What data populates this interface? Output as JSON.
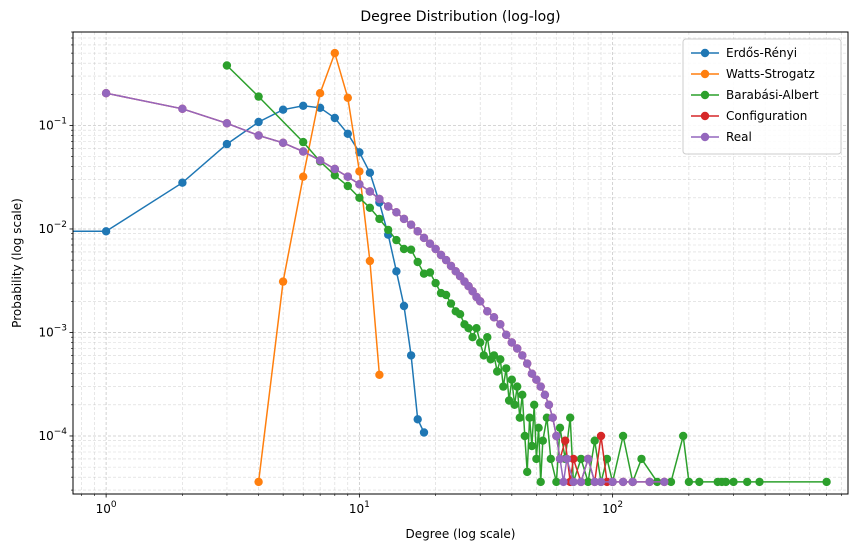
{
  "chart_data": {
    "type": "line",
    "title": "Degree Distribution (log-log)",
    "xlabel": "Degree (log scale)",
    "ylabel": "Probability (log scale)",
    "xscale": "log",
    "yscale": "log",
    "xlim": [
      0.74,
      850
    ],
    "ylim": [
      2.75e-05,
      0.8
    ],
    "grid": true,
    "legend_position": "top-right",
    "x_ticks": [
      {
        "base": "10",
        "exp": "0",
        "value": 1
      },
      {
        "base": "10",
        "exp": "1",
        "value": 10
      },
      {
        "base": "10",
        "exp": "2",
        "value": 100
      }
    ],
    "y_ticks": [
      {
        "base": "10",
        "exp": "−4",
        "value": 0.0001
      },
      {
        "base": "10",
        "exp": "−3",
        "value": 0.001
      },
      {
        "base": "10",
        "exp": "−2",
        "value": 0.01
      },
      {
        "base": "10",
        "exp": "−1",
        "value": 0.1
      }
    ],
    "series": [
      {
        "name": "Erdős-Rényi",
        "color": "#1f77b4",
        "points": [
          [
            0.5,
            0.0095
          ],
          [
            1,
            0.0095
          ],
          [
            2,
            0.028
          ],
          [
            3,
            0.066
          ],
          [
            4,
            0.108
          ],
          [
            5,
            0.142
          ],
          [
            6,
            0.155
          ],
          [
            7,
            0.148
          ],
          [
            8,
            0.118
          ],
          [
            9,
            0.083
          ],
          [
            10,
            0.055
          ],
          [
            11,
            0.035
          ],
          [
            12,
            0.018
          ],
          [
            13,
            0.0088
          ],
          [
            14,
            0.0039
          ],
          [
            15,
            0.0018
          ],
          [
            16,
            0.0006
          ],
          [
            17,
            0.000145
          ],
          [
            18,
            0.000108
          ]
        ]
      },
      {
        "name": "Watts-Strogatz",
        "color": "#ff7f0e",
        "points": [
          [
            4,
            3.6e-05
          ],
          [
            5,
            0.0031
          ],
          [
            6,
            0.032
          ],
          [
            7,
            0.205
          ],
          [
            8,
            0.5
          ],
          [
            9,
            0.185
          ],
          [
            10,
            0.036
          ],
          [
            11,
            0.0049
          ],
          [
            12,
            0.00039
          ]
        ]
      },
      {
        "name": "Barabási-Albert",
        "color": "#2ca02c",
        "points": [
          [
            3,
            0.38
          ],
          [
            4,
            0.19
          ],
          [
            6,
            0.069
          ],
          [
            7,
            0.045
          ],
          [
            8,
            0.033
          ],
          [
            9,
            0.026
          ],
          [
            10,
            0.02
          ],
          [
            11,
            0.016
          ],
          [
            12,
            0.0125
          ],
          [
            13,
            0.0098
          ],
          [
            14,
            0.0078
          ],
          [
            15,
            0.0064
          ],
          [
            16,
            0.0063
          ],
          [
            17,
            0.0048
          ],
          [
            18,
            0.0037
          ],
          [
            19,
            0.0038
          ],
          [
            20,
            0.003
          ],
          [
            21,
            0.0024
          ],
          [
            22,
            0.0023
          ],
          [
            23,
            0.0019
          ],
          [
            24,
            0.0016
          ],
          [
            25,
            0.0015
          ],
          [
            26,
            0.0012
          ],
          [
            27,
            0.0011
          ],
          [
            28,
            0.0009
          ],
          [
            29,
            0.0011
          ],
          [
            30,
            0.0008
          ],
          [
            31,
            0.0006
          ],
          [
            32,
            0.0009
          ],
          [
            33,
            0.00055
          ],
          [
            34,
            0.0006
          ],
          [
            35,
            0.00042
          ],
          [
            36,
            0.00055
          ],
          [
            37,
            0.0003
          ],
          [
            38,
            0.00045
          ],
          [
            39,
            0.00022
          ],
          [
            40,
            0.00035
          ],
          [
            41,
            0.0002
          ],
          [
            42,
            0.0003
          ],
          [
            43,
            0.00015
          ],
          [
            44,
            0.00025
          ],
          [
            45,
            0.0001
          ],
          [
            46,
            4.5e-05
          ],
          [
            47,
            0.00015
          ],
          [
            48,
            8e-05
          ],
          [
            49,
            0.0002
          ],
          [
            50,
            6e-05
          ],
          [
            51,
            0.00012
          ],
          [
            52,
            3.6e-05
          ],
          [
            53,
            9e-05
          ],
          [
            55,
            0.00015
          ],
          [
            57,
            6e-05
          ],
          [
            60,
            3.6e-05
          ],
          [
            62,
            0.00012
          ],
          [
            65,
            6e-05
          ],
          [
            68,
            0.00015
          ],
          [
            70,
            3.6e-05
          ],
          [
            75,
            6e-05
          ],
          [
            80,
            3.6e-05
          ],
          [
            85,
            9e-05
          ],
          [
            90,
            3.6e-05
          ],
          [
            95,
            6e-05
          ],
          [
            100,
            3.6e-05
          ],
          [
            110,
            0.0001
          ],
          [
            120,
            3.6e-05
          ],
          [
            130,
            6e-05
          ],
          [
            150,
            3.6e-05
          ],
          [
            170,
            3.6e-05
          ],
          [
            190,
            0.0001
          ],
          [
            200,
            3.6e-05
          ],
          [
            220,
            3.6e-05
          ],
          [
            260,
            3.6e-05
          ],
          [
            270,
            3.6e-05
          ],
          [
            280,
            3.6e-05
          ],
          [
            300,
            3.6e-05
          ],
          [
            340,
            3.6e-05
          ],
          [
            380,
            3.6e-05
          ],
          [
            700,
            3.6e-05
          ]
        ]
      },
      {
        "name": "Configuration",
        "color": "#d62728",
        "points": [
          [
            1,
            0.205
          ],
          [
            2,
            0.145
          ],
          [
            3,
            0.105
          ],
          [
            4,
            0.08
          ],
          [
            5,
            0.068
          ],
          [
            6,
            0.056
          ],
          [
            7,
            0.046
          ],
          [
            8,
            0.038
          ],
          [
            9,
            0.032
          ],
          [
            10,
            0.027
          ],
          [
            11,
            0.023
          ],
          [
            12,
            0.0195
          ],
          [
            13,
            0.0165
          ],
          [
            14,
            0.0145
          ],
          [
            15,
            0.0125
          ],
          [
            16,
            0.011
          ],
          [
            17,
            0.0095
          ],
          [
            18,
            0.0082
          ],
          [
            19,
            0.0072
          ],
          [
            20,
            0.0064
          ],
          [
            21,
            0.0056
          ],
          [
            22,
            0.005
          ],
          [
            23,
            0.0044
          ],
          [
            24,
            0.0039
          ],
          [
            25,
            0.0035
          ],
          [
            26,
            0.0031
          ],
          [
            27,
            0.0028
          ],
          [
            28,
            0.0025
          ],
          [
            29,
            0.0022
          ],
          [
            30,
            0.002
          ],
          [
            32,
            0.0016
          ],
          [
            34,
            0.0014
          ],
          [
            36,
            0.0012
          ],
          [
            38,
            0.00095
          ],
          [
            40,
            0.0008
          ],
          [
            42,
            0.0007
          ],
          [
            44,
            0.0006
          ],
          [
            46,
            0.0005
          ],
          [
            48,
            0.0004
          ],
          [
            50,
            0.00035
          ],
          [
            52,
            0.0003
          ],
          [
            54,
            0.00025
          ],
          [
            56,
            0.0002
          ],
          [
            58,
            0.00015
          ],
          [
            60,
            0.0001
          ],
          [
            62,
            6e-05
          ],
          [
            65,
            9e-05
          ],
          [
            68,
            3.6e-05
          ],
          [
            70,
            6e-05
          ],
          [
            75,
            3.6e-05
          ],
          [
            80,
            6e-05
          ],
          [
            85,
            3.6e-05
          ],
          [
            90,
            0.0001
          ],
          [
            95,
            3.6e-05
          ],
          [
            100,
            3.6e-05
          ],
          [
            110,
            3.6e-05
          ],
          [
            120,
            3.6e-05
          ],
          [
            140,
            3.6e-05
          ],
          [
            160,
            3.6e-05
          ]
        ]
      },
      {
        "name": "Real",
        "color": "#9467bd",
        "points": [
          [
            1,
            0.205
          ],
          [
            2,
            0.145
          ],
          [
            3,
            0.105
          ],
          [
            4,
            0.08
          ],
          [
            5,
            0.068
          ],
          [
            6,
            0.056
          ],
          [
            7,
            0.046
          ],
          [
            8,
            0.038
          ],
          [
            9,
            0.032
          ],
          [
            10,
            0.027
          ],
          [
            11,
            0.023
          ],
          [
            12,
            0.0195
          ],
          [
            13,
            0.0165
          ],
          [
            14,
            0.0145
          ],
          [
            15,
            0.0125
          ],
          [
            16,
            0.011
          ],
          [
            17,
            0.0095
          ],
          [
            18,
            0.0082
          ],
          [
            19,
            0.0072
          ],
          [
            20,
            0.0064
          ],
          [
            21,
            0.0056
          ],
          [
            22,
            0.005
          ],
          [
            23,
            0.0044
          ],
          [
            24,
            0.0039
          ],
          [
            25,
            0.0035
          ],
          [
            26,
            0.0031
          ],
          [
            27,
            0.0028
          ],
          [
            28,
            0.0025
          ],
          [
            29,
            0.0022
          ],
          [
            30,
            0.002
          ],
          [
            32,
            0.0016
          ],
          [
            34,
            0.0014
          ],
          [
            36,
            0.0012
          ],
          [
            38,
            0.00095
          ],
          [
            40,
            0.0008
          ],
          [
            42,
            0.0007
          ],
          [
            44,
            0.0006
          ],
          [
            46,
            0.0005
          ],
          [
            48,
            0.0004
          ],
          [
            50,
            0.00035
          ],
          [
            52,
            0.0003
          ],
          [
            54,
            0.00025
          ],
          [
            56,
            0.0002
          ],
          [
            58,
            0.00015
          ],
          [
            60,
            0.0001
          ],
          [
            62,
            6e-05
          ],
          [
            64,
            3.6e-05
          ],
          [
            66,
            6e-05
          ],
          [
            70,
            3.6e-05
          ],
          [
            75,
            3.6e-05
          ],
          [
            80,
            6e-05
          ],
          [
            85,
            3.6e-05
          ],
          [
            90,
            3.6e-05
          ],
          [
            100,
            3.6e-05
          ],
          [
            110,
            3.6e-05
          ],
          [
            120,
            3.6e-05
          ],
          [
            140,
            3.6e-05
          ],
          [
            160,
            3.6e-05
          ]
        ]
      }
    ]
  }
}
